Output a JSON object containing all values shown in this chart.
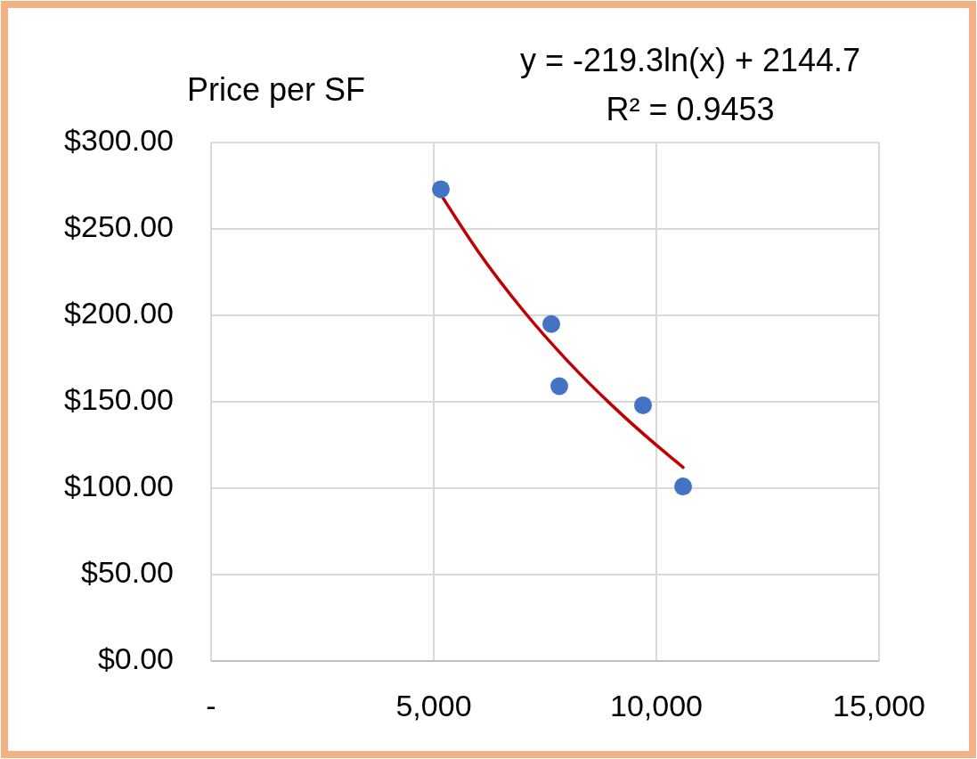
{
  "chart_data": {
    "type": "scatter",
    "title": "Price per SF",
    "annotations": [
      "y = -219.3ln(x) + 2144.7",
      "R² = 0.9453"
    ],
    "series": [
      {
        "color": "#4472c4",
        "marker": "circle",
        "x": [
          5160,
          7640,
          7820,
          9700,
          10600
        ],
        "values": [
          273,
          195,
          159,
          148,
          101
        ]
      },
      {
        "type": "line",
        "color": "#c00000",
        "marker": "none",
        "line_style": "solid",
        "x": [
          5160,
          6000,
          7000,
          8000,
          9000,
          10000,
          10600
        ],
        "values": [
          269.9,
          236.9,
          203.1,
          173.8,
          148.0,
          124.9,
          112.1
        ]
      }
    ],
    "xlim": [
      0,
      15000
    ],
    "xticks": [
      {
        "value": 0,
        "label": "-"
      },
      {
        "value": 5000,
        "label": "5,000"
      },
      {
        "value": 10000,
        "label": "10,000"
      },
      {
        "value": 15000,
        "label": "15,000"
      }
    ],
    "ylim": [
      0,
      300
    ],
    "yticks": [
      {
        "value": 0,
        "label": "$0.00"
      },
      {
        "value": 50,
        "label": "$50.00"
      },
      {
        "value": 100,
        "label": "$100.00"
      },
      {
        "value": 150,
        "label": "$150.00"
      },
      {
        "value": 200,
        "label": "$200.00"
      },
      {
        "value": 250,
        "label": "$250.00"
      },
      {
        "value": 300,
        "label": "$300.00"
      }
    ],
    "grid": true
  }
}
